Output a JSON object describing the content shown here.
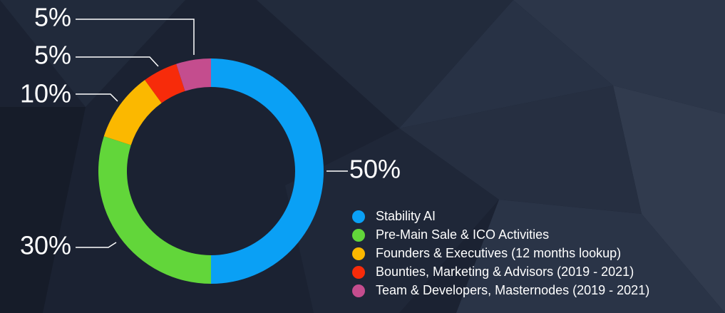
{
  "chart_data": {
    "type": "donut",
    "categories": [
      "Stability AI",
      "Pre-Main Sale & ICO Activities",
      "Founders & Executives (12 months lookup)",
      "Bounties, Marketing & Advisors (2019 - 2021)",
      "Team & Developers, Masternodes (2019 - 2021)"
    ],
    "values": [
      50,
      30,
      10,
      5,
      5
    ],
    "value_labels": [
      "50%",
      "30%",
      "10%",
      "5%",
      "5%"
    ],
    "colors": [
      "#0aa0f5",
      "#62d63a",
      "#fbb800",
      "#f72b0a",
      "#c44d8e"
    ],
    "legend": "bottom-right"
  }
}
